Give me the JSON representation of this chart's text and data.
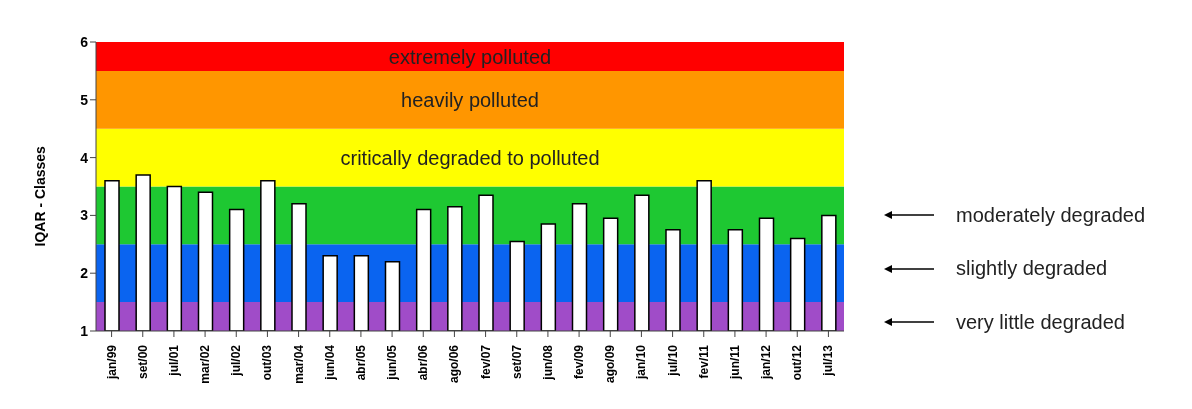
{
  "chart_data": {
    "type": "bar",
    "ylabel": "IQAR - Classes",
    "categories": [
      "jan/99",
      "set/00",
      "jul/01",
      "mar/02",
      "jul/02",
      "out/03",
      "mar/04",
      "jun/04",
      "abr/05",
      "jun/05",
      "abr/06",
      "ago/06",
      "fev/07",
      "set/07",
      "jun/08",
      "fev/09",
      "ago/09",
      "jan/10",
      "jul/10",
      "fev/11",
      "jun/11",
      "jan/12",
      "out/12",
      "jul/13"
    ],
    "values": [
      3.6,
      3.7,
      3.5,
      3.4,
      3.1,
      3.6,
      3.2,
      2.3,
      2.3,
      2.2,
      3.1,
      3.15,
      3.35,
      2.55,
      2.85,
      3.2,
      2.95,
      3.35,
      2.75,
      3.6,
      2.75,
      2.95,
      2.6,
      3.0
    ],
    "color": "#ffffff",
    "ylim": [
      1,
      6
    ],
    "yticks": [
      1,
      2,
      3,
      4,
      5,
      6
    ],
    "grid": false,
    "bands": [
      {
        "axis": "y",
        "from": 1,
        "to": 1.5,
        "color": "#a04cc8"
      },
      {
        "axis": "y",
        "from": 1.5,
        "to": 2.5,
        "color": "#0a64f0"
      },
      {
        "axis": "y",
        "from": 2.5,
        "to": 3.5,
        "color": "#1ec832"
      },
      {
        "axis": "y",
        "from": 3.5,
        "to": 4.5,
        "color": "#ffff00",
        "label": "critically degraded to polluted"
      },
      {
        "axis": "y",
        "from": 4.5,
        "to": 5.5,
        "color": "#ff9600",
        "label": "heavily polluted"
      },
      {
        "axis": "y",
        "from": 5.5,
        "to": 6,
        "color": "#ff0000",
        "label": "extremely polluted"
      }
    ],
    "annotations": [
      "moderately degraded",
      "slightly degraded",
      "very little degraded"
    ]
  }
}
